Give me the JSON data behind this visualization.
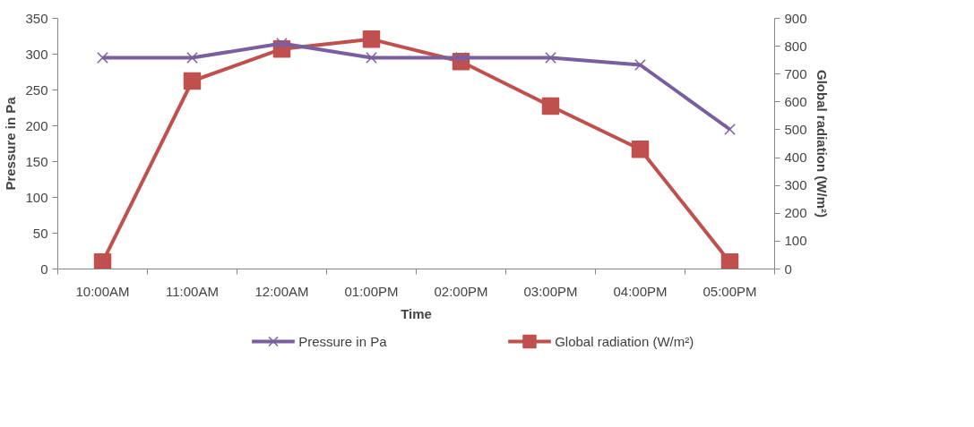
{
  "chart_data": {
    "type": "line",
    "xlabel": "Time",
    "ylabel": "Pressure in Pa",
    "y2label": "Global radiation (W/m²)",
    "categories": [
      "10:00AM",
      "11:00AM",
      "12:00AM",
      "01:00PM",
      "02:00PM",
      "03:00PM",
      "04:00PM",
      "05:00PM"
    ],
    "series": [
      {
        "name": "Pressure in Pa",
        "color": "#7a5fa0",
        "marker": "cross",
        "values": [
          295,
          295,
          315,
          295,
          295,
          295,
          285,
          195
        ]
      },
      {
        "name": "Global radiation (W/m²)",
        "color": "#c0504d",
        "marker": "square",
        "axis": "y2",
        "values": [
          25,
          675,
          790,
          825,
          745,
          585,
          430,
          25
        ]
      }
    ],
    "ylim": [
      0,
      350
    ],
    "yticks": [
      0,
      50,
      100,
      150,
      200,
      250,
      300,
      350
    ],
    "y2lim": [
      0,
      900
    ],
    "y2ticks": [
      0,
      100,
      200,
      300,
      400,
      500,
      600,
      700,
      800,
      900
    ],
    "grid": false,
    "legend": "bottom"
  }
}
